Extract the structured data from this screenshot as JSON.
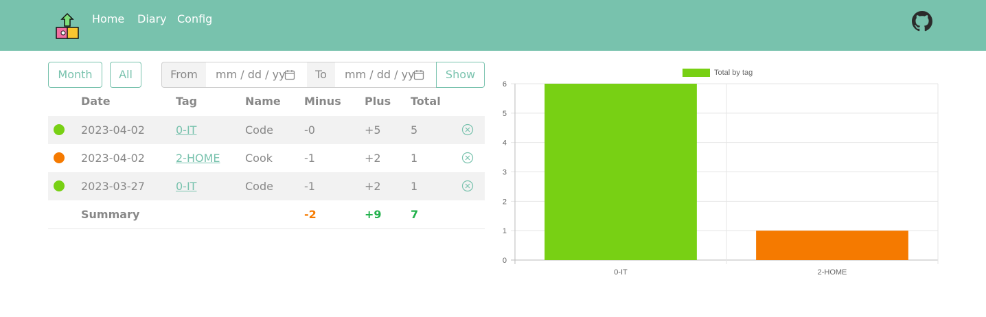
{
  "nav": {
    "links": [
      "Home",
      "Diary",
      "Config"
    ]
  },
  "filters": {
    "month_label": "Month",
    "all_label": "All",
    "from_label": "From",
    "to_label": "To",
    "date_placeholder": "mm / dd / yy",
    "show_label": "Show"
  },
  "table": {
    "headers": [
      "Date",
      "Tag",
      "Name",
      "Minus",
      "Plus",
      "Total"
    ],
    "rows": [
      {
        "color": "#78d014",
        "date": "2023-04-02",
        "tag": "0-IT",
        "name": "Code",
        "minus": "-0",
        "plus": "+5",
        "total": "5"
      },
      {
        "color": "#f57a00",
        "date": "2023-04-02",
        "tag": "2-HOME",
        "name": "Cook",
        "minus": "-1",
        "plus": "+2",
        "total": "1"
      },
      {
        "color": "#78d014",
        "date": "2023-03-27",
        "tag": "0-IT",
        "name": "Code",
        "minus": "-1",
        "plus": "+2",
        "total": "1"
      }
    ],
    "summary": {
      "label": "Summary",
      "minus": "-2",
      "plus": "+9",
      "total": "7"
    }
  },
  "colors": {
    "brand": "#78c2ad",
    "minus": "#f57a00",
    "plus": "#22b14c"
  },
  "chart_data": {
    "type": "bar",
    "categories": [
      "0-IT",
      "2-HOME"
    ],
    "series": [
      {
        "name": "Total by tag",
        "values": [
          6,
          1
        ],
        "colors": [
          "#78d014",
          "#f57a00"
        ]
      }
    ],
    "ylim": [
      0,
      6
    ],
    "yticks": [
      0,
      1,
      2,
      3,
      4,
      5,
      6
    ],
    "legend": "top",
    "grid": true
  }
}
